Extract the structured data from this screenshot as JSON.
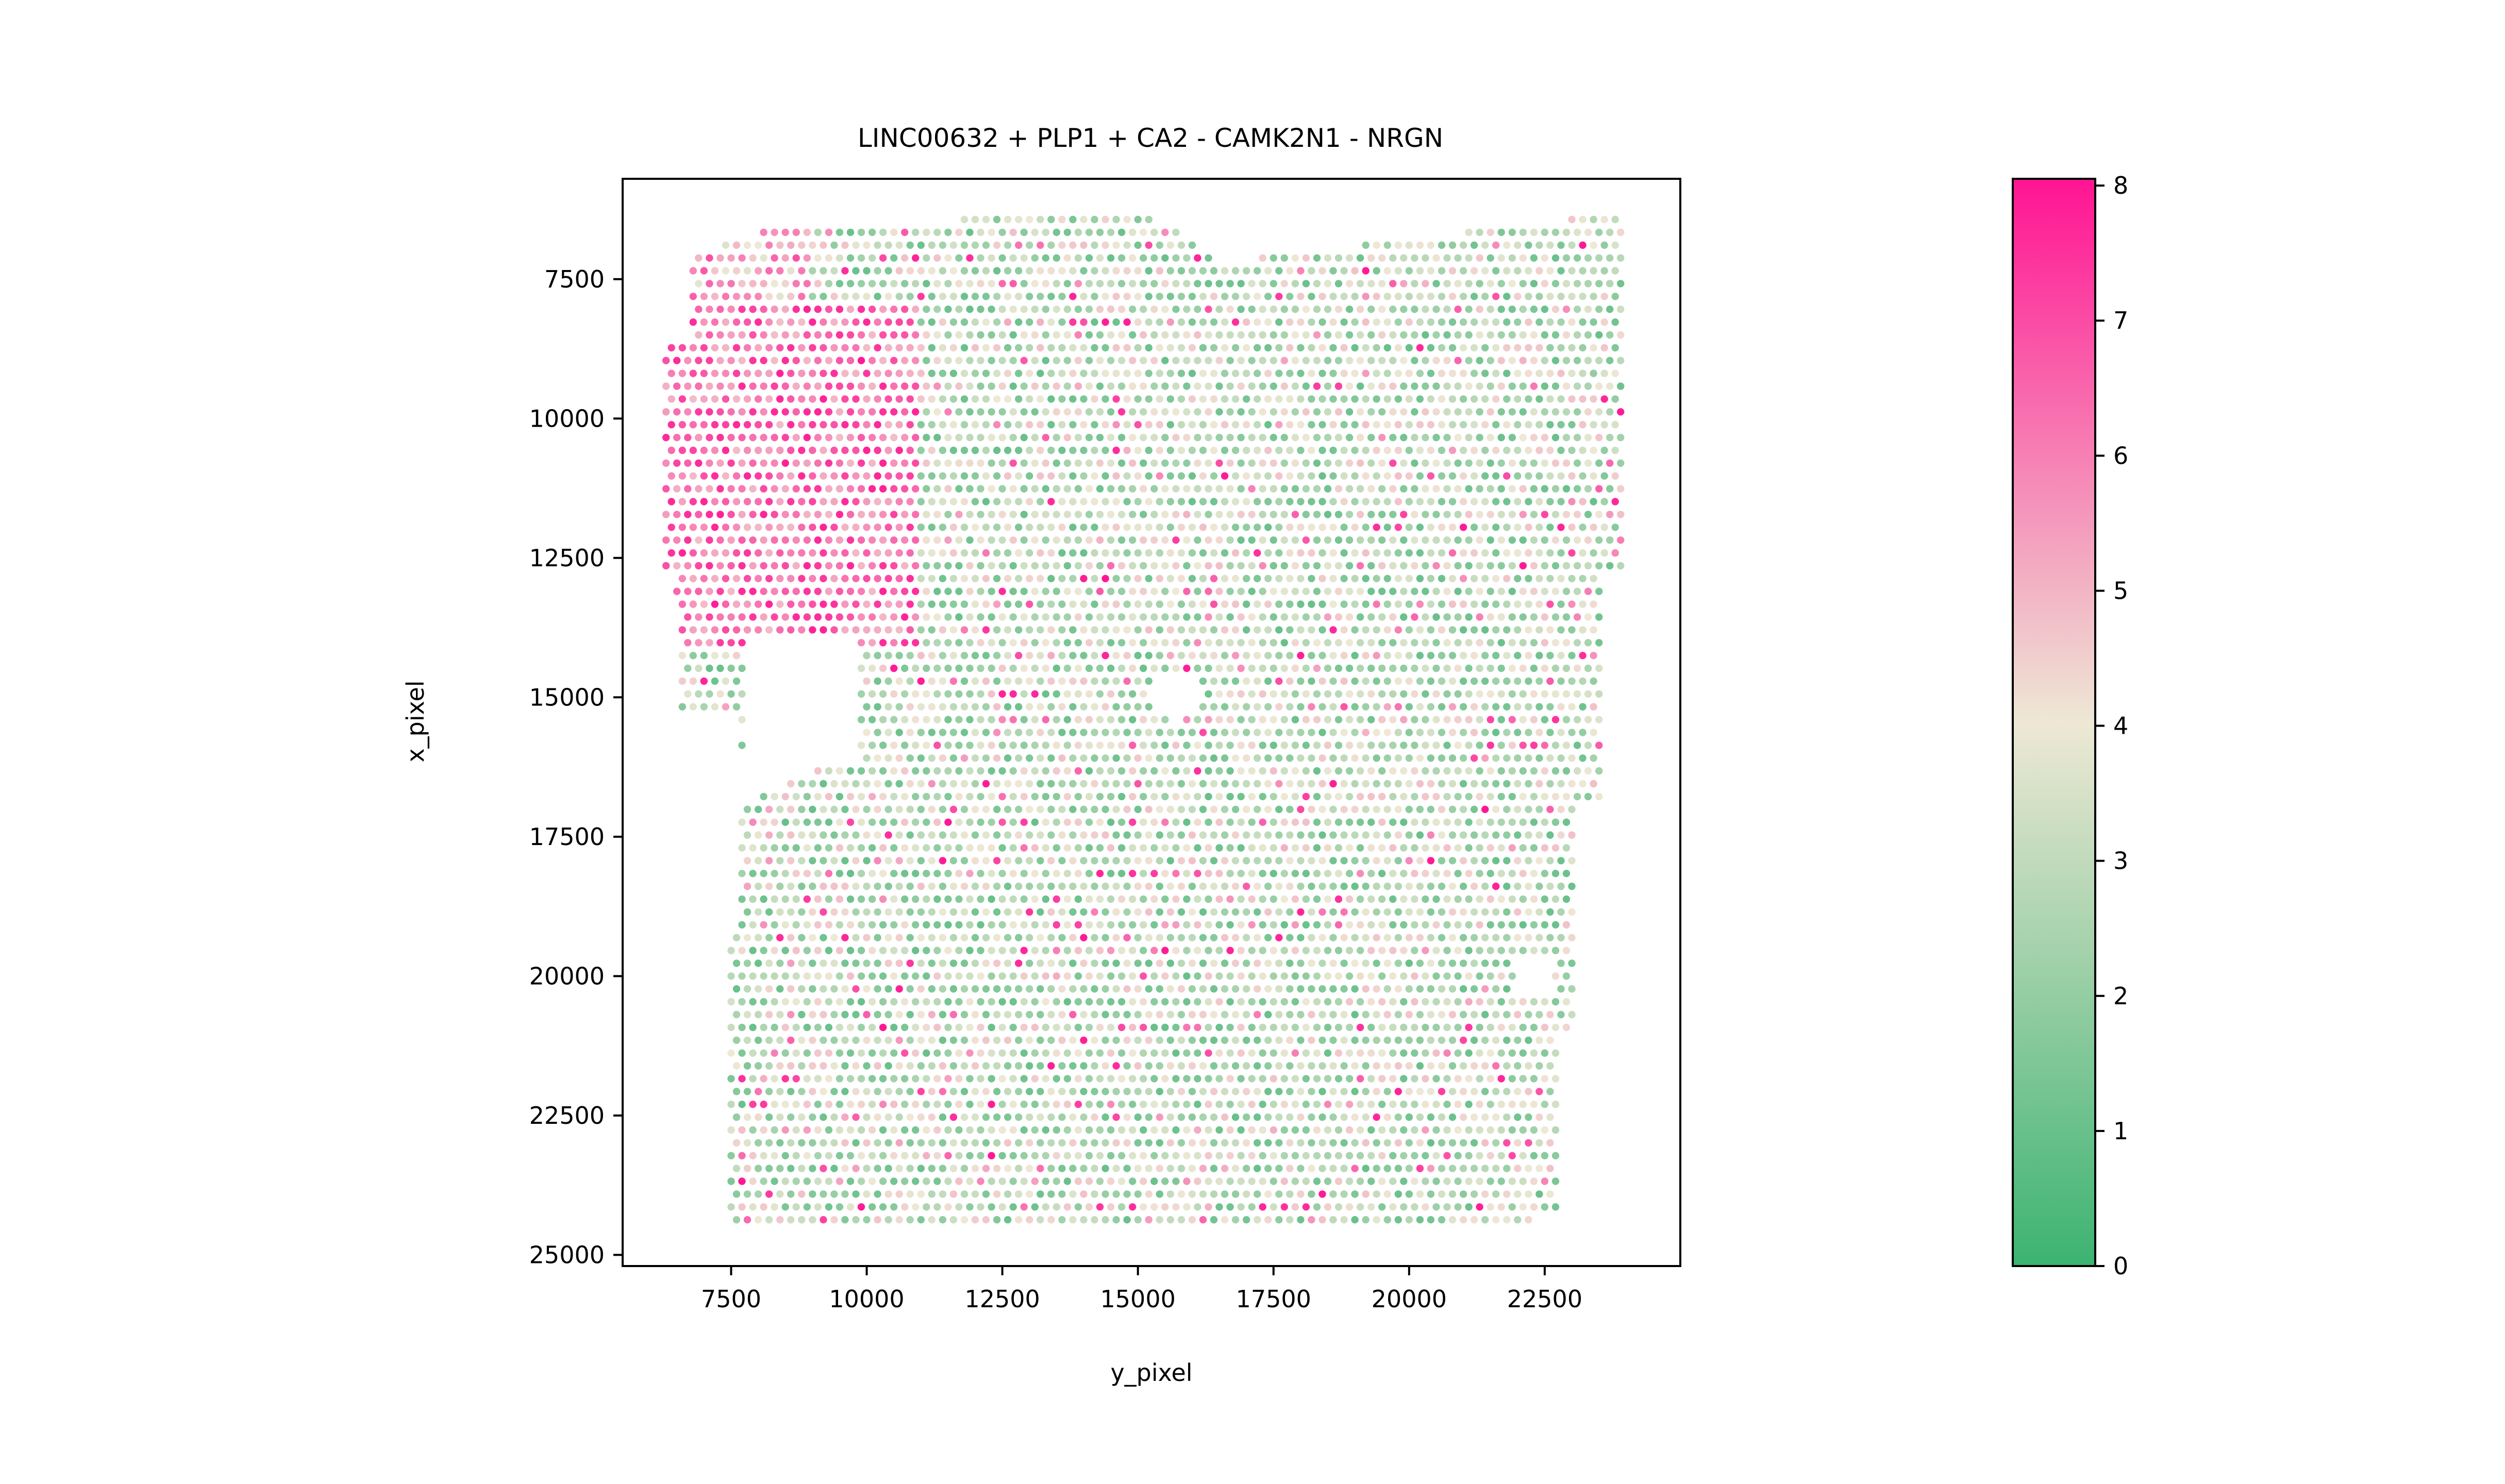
{
  "chart_data": {
    "type": "scatter",
    "title": "LINC00632 + PLP1 + CA2 - CAMK2N1 - NRGN",
    "xlabel": "y_pixel",
    "ylabel": "x_pixel",
    "xlim": [
      5500,
      25000
    ],
    "ylim": [
      25200,
      5700
    ],
    "y_inverted": true,
    "xticks": [
      7500,
      10000,
      12500,
      15000,
      17500,
      20000,
      22500
    ],
    "xtick_labels": [
      "7500",
      "10000",
      "12500",
      "15000",
      "17500",
      "20000",
      "22500"
    ],
    "yticks": [
      7500,
      10000,
      12500,
      15000,
      17500,
      20000,
      22500,
      25000
    ],
    "ytick_labels": [
      "7500",
      "10000",
      "12500",
      "15000",
      "17500",
      "20000",
      "22500",
      "25000"
    ],
    "colorbar": {
      "range": [
        0,
        8.05
      ],
      "ticks": [
        0,
        1,
        2,
        3,
        4,
        5,
        6,
        7,
        8
      ],
      "tick_labels": [
        "0",
        "1",
        "2",
        "3",
        "4",
        "5",
        "6",
        "7",
        "8"
      ],
      "colormap": [
        "#3cb371",
        "#eee8d5",
        "#ff1493"
      ]
    },
    "spot_grid": {
      "x_start": 6300,
      "y_start": 6200,
      "x_step": 200,
      "y_step": 230,
      "shape": "hexagonal",
      "value_range": [
        0,
        8
      ]
    },
    "spots_note": "Visium spot grid of several thousand spots; values mostly 1-4 (green/beige), high values 5-8 (pink) concentrated in the upper-left region x_pixel 8000-14000, y_pixel 6500-11000."
  }
}
